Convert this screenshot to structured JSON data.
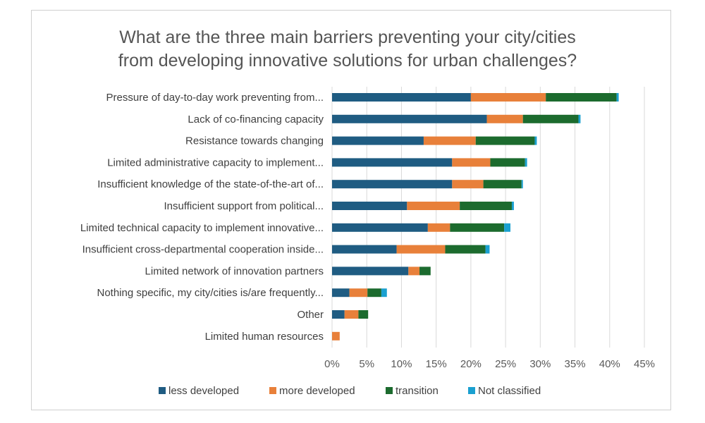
{
  "chart_data": {
    "type": "bar",
    "orientation": "horizontal",
    "stacked": true,
    "title": [
      "What are the three main barriers preventing your city/cities",
      "from developing innovative solutions for urban challenges?"
    ],
    "xlabel": "",
    "ylabel": "",
    "xlim": [
      0,
      45
    ],
    "x_ticks": [
      "0%",
      "5%",
      "10%",
      "15%",
      "20%",
      "25%",
      "30%",
      "35%",
      "40%",
      "45%"
    ],
    "grid": "vertical",
    "legend_position": "bottom",
    "categories": [
      "Pressure of day-to-day work preventing from...",
      "Lack of co-financing capacity",
      "Resistance towards changing",
      "Limited administrative capacity to implement...",
      "Insufficient knowledge of the state-of-the-art of...",
      "Insufficient support from political...",
      "Limited technical capacity to implement innovative...",
      "Insufficient cross-departmental cooperation inside...",
      "Limited network of innovation partners",
      "Nothing specific, my city/cities is/are frequently...",
      "Other",
      "Limited human resources"
    ],
    "series": [
      {
        "name": "less developed",
        "color": "#1f5c82",
        "values": [
          20.0,
          22.3,
          13.2,
          17.3,
          17.3,
          10.8,
          13.8,
          9.3,
          11.0,
          2.5,
          1.8,
          0.0
        ]
      },
      {
        "name": "more developed",
        "color": "#e8803a",
        "values": [
          10.8,
          5.2,
          7.5,
          5.5,
          4.5,
          7.6,
          3.2,
          7.0,
          1.6,
          2.6,
          2.0,
          1.1
        ]
      },
      {
        "name": "transition",
        "color": "#1c6b2e",
        "values": [
          10.2,
          8.0,
          8.5,
          5.0,
          5.5,
          7.5,
          7.8,
          5.8,
          1.6,
          2.0,
          1.4,
          0.0
        ]
      },
      {
        "name": "Not classified",
        "color": "#1aa0d0",
        "values": [
          0.3,
          0.3,
          0.3,
          0.3,
          0.2,
          0.3,
          0.9,
          0.6,
          0.0,
          0.8,
          0.0,
          0.0
        ]
      }
    ]
  }
}
